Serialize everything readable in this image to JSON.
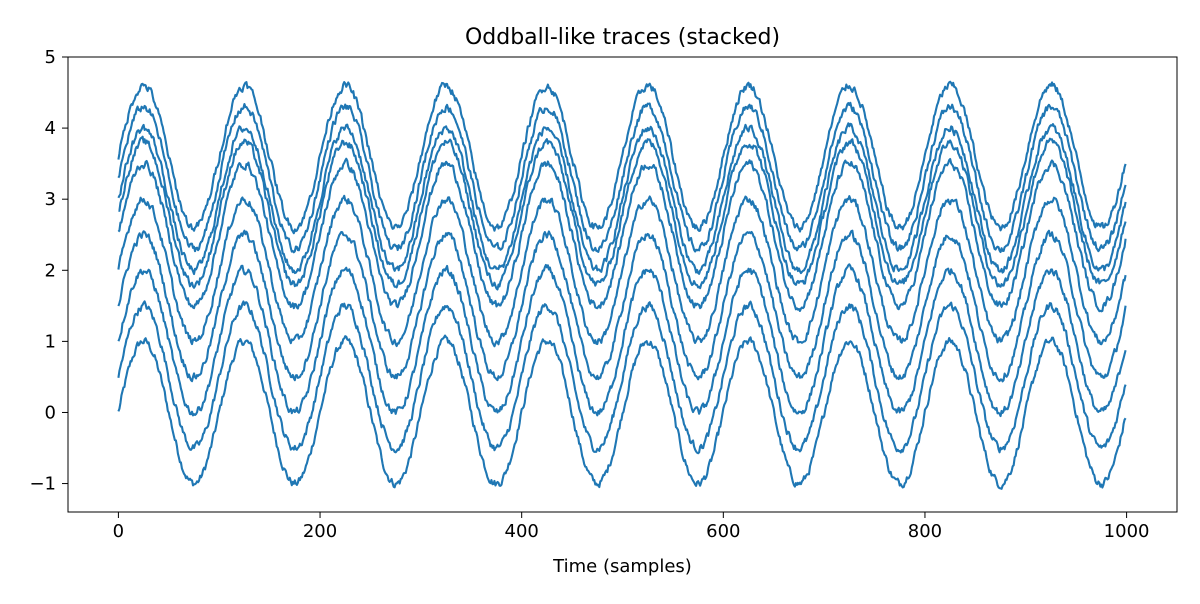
{
  "chart_data": {
    "type": "line",
    "title": "Oddball-like traces (stacked)",
    "xlabel": "Time (samples)",
    "ylabel": "",
    "xlim": [
      -50,
      1050
    ],
    "ylim": [
      -1.4,
      5
    ],
    "xticks": [
      0,
      200,
      400,
      600,
      800,
      1000
    ],
    "xtick_labels": [
      "0",
      "200",
      "400",
      "600",
      "800",
      "1000"
    ],
    "yticks": [
      -1,
      0,
      1,
      2,
      3,
      4,
      5
    ],
    "ytick_labels": [
      "−1",
      "0",
      "1",
      "2",
      "3",
      "4",
      "5"
    ],
    "grid": false,
    "legend": "none",
    "line_color": "#1f77b4",
    "x_range": [
      0,
      999
    ],
    "period_samples": 100,
    "amplitude": 1.0,
    "noise_amplitude": 0.05,
    "series": [
      {
        "offset": 0.0
      },
      {
        "offset": 0.5
      },
      {
        "offset": 1.0
      },
      {
        "offset": 1.5
      },
      {
        "offset": 2.0
      },
      {
        "offset": 2.5
      },
      {
        "offset": 2.8
      },
      {
        "offset": 3.0
      },
      {
        "offset": 3.3
      },
      {
        "offset": 3.6
      }
    ]
  }
}
